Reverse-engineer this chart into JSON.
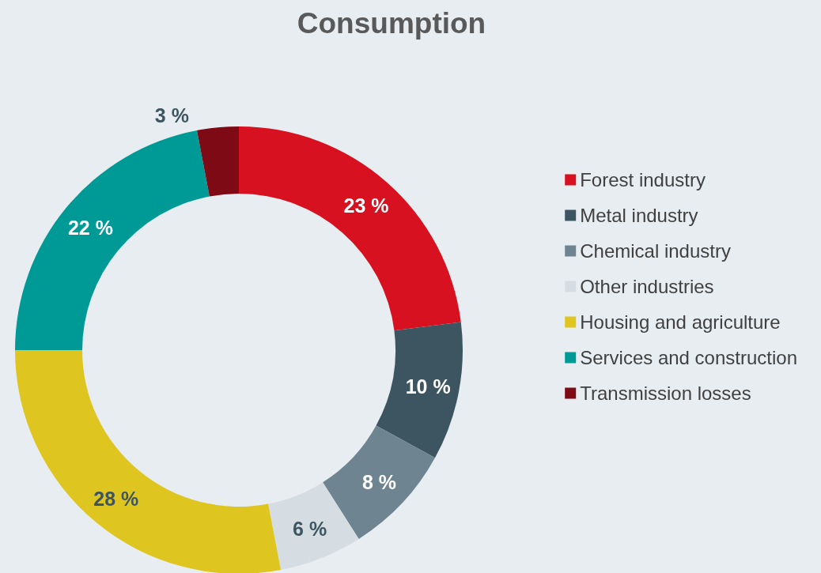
{
  "chart_data": {
    "type": "donut",
    "title": "Consumption",
    "categories": [
      "Forest industry",
      "Metal industry",
      "Chemical industry",
      "Other industries",
      "Housing and agriculture",
      "Services and construction",
      "Transmission losses"
    ],
    "values": [
      23,
      10,
      8,
      6,
      28,
      22,
      3
    ],
    "colors": [
      "#d7111f",
      "#3d5561",
      "#6e8591",
      "#d6dde2",
      "#dfc520",
      "#009a96",
      "#7d0a14"
    ],
    "value_labels": [
      "23 %",
      "10 %",
      "8 %",
      "6 %",
      "28 %",
      "22 %",
      "3 %"
    ],
    "legend": "right"
  }
}
